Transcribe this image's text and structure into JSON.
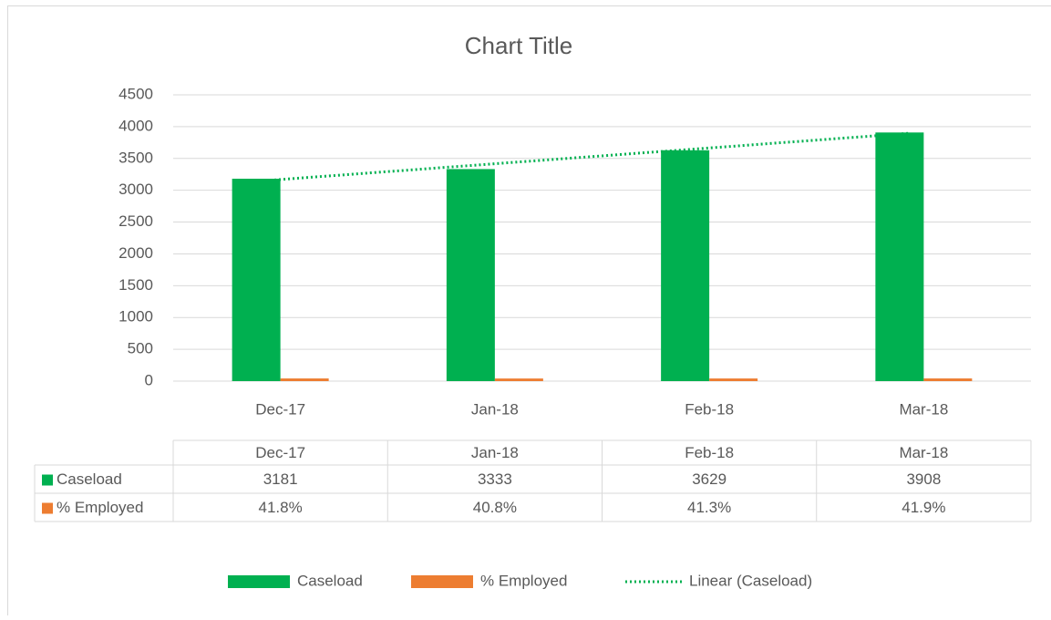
{
  "chart_data": {
    "type": "bar",
    "title": "Chart Title",
    "categories": [
      "Dec-17",
      "Jan-18",
      "Feb-18",
      "Mar-18"
    ],
    "series": [
      {
        "name": "Caseload",
        "color": "#00b050",
        "values": [
          3181,
          3333,
          3629,
          3908
        ],
        "trendline": {
          "name": "Linear (Caseload)",
          "type": "linear",
          "color": "#00b050"
        }
      },
      {
        "name": "% Employed",
        "color": "#ed7d31",
        "values": [
          41.8,
          40.8,
          41.3,
          41.9
        ],
        "value_labels": [
          "41.8%",
          "40.8%",
          "41.3%",
          "41.9%"
        ]
      }
    ],
    "ylim": [
      0,
      4500
    ],
    "yticks": [
      0,
      500,
      1000,
      1500,
      2000,
      2500,
      3000,
      3500,
      4000,
      4500
    ],
    "grid": true,
    "data_table": true,
    "legend": "bottom"
  }
}
